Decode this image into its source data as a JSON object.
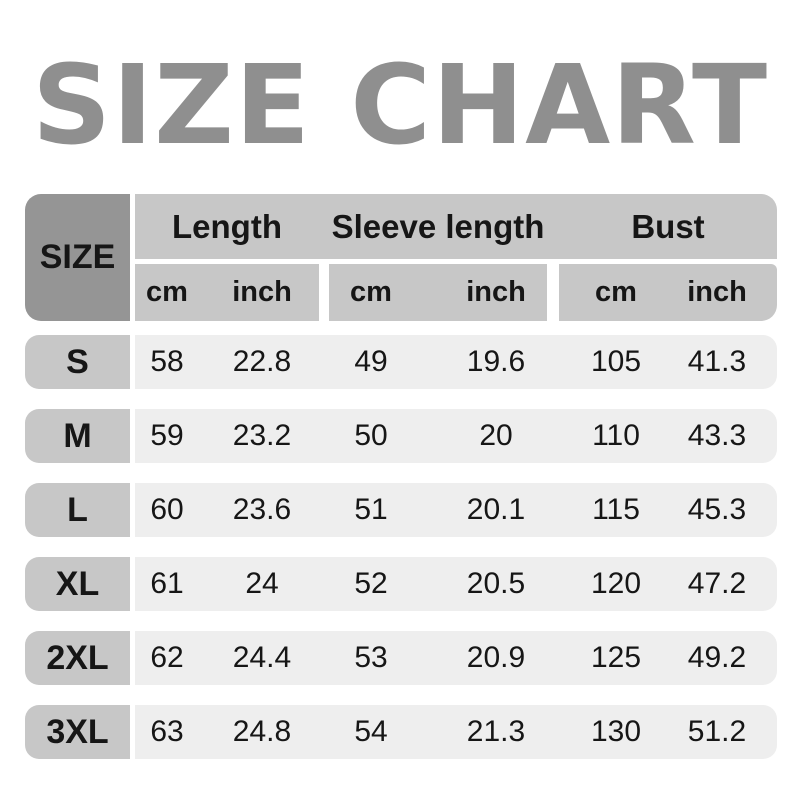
{
  "title": "SIZE CHART",
  "colors": {
    "title_gray": "#8f8f8f",
    "size_header_bg": "#959595",
    "header_bg": "#c7c7c7",
    "row_label_bg": "#c7c7c7",
    "data_band_bg": "#eeeeee",
    "text": "#161616",
    "background": "#ffffff"
  },
  "table": {
    "size_header": "SIZE",
    "groups": [
      {
        "label": "Length",
        "units": [
          "cm",
          "inch"
        ]
      },
      {
        "label": "Sleeve length",
        "units": [
          "cm",
          "inch"
        ]
      },
      {
        "label": "Bust",
        "units": [
          "cm",
          "inch"
        ]
      }
    ],
    "rows": [
      {
        "size": "S",
        "values": [
          "58",
          "22.8",
          "49",
          "19.6",
          "105",
          "41.3"
        ]
      },
      {
        "size": "M",
        "values": [
          "59",
          "23.2",
          "50",
          "20",
          "110",
          "43.3"
        ]
      },
      {
        "size": "L",
        "values": [
          "60",
          "23.6",
          "51",
          "20.1",
          "115",
          "45.3"
        ]
      },
      {
        "size": "XL",
        "values": [
          "61",
          "24",
          "52",
          "20.5",
          "120",
          "47.2"
        ]
      },
      {
        "size": "2XL",
        "values": [
          "62",
          "24.4",
          "53",
          "20.9",
          "125",
          "49.2"
        ]
      },
      {
        "size": "3XL",
        "values": [
          "63",
          "24.8",
          "54",
          "21.3",
          "130",
          "51.2"
        ]
      }
    ]
  },
  "chart_data": {
    "type": "table",
    "title": "SIZE CHART",
    "column_groups": [
      "Length",
      "Sleeve length",
      "Bust"
    ],
    "columns": [
      "SIZE",
      "Length cm",
      "Length inch",
      "Sleeve length cm",
      "Sleeve length inch",
      "Bust cm",
      "Bust inch"
    ],
    "rows": [
      [
        "S",
        58,
        22.8,
        49,
        19.6,
        105,
        41.3
      ],
      [
        "M",
        59,
        23.2,
        50,
        20,
        110,
        43.3
      ],
      [
        "L",
        60,
        23.6,
        51,
        20.1,
        115,
        45.3
      ],
      [
        "XL",
        61,
        24,
        52,
        20.5,
        120,
        47.2
      ],
      [
        "2XL",
        62,
        24.4,
        53,
        20.9,
        125,
        49.2
      ],
      [
        "3XL",
        63,
        24.8,
        54,
        21.3,
        130,
        51.2
      ]
    ]
  }
}
